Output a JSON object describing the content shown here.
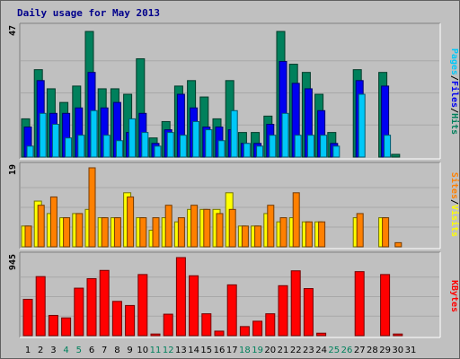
{
  "title": "Daily usage for May 2013",
  "colors": {
    "background": "#c0c0c0",
    "panel": "#c0c0c0",
    "hits": "#00805c",
    "files": "#0000f0",
    "pages": "#00c8f8",
    "visits": "#ffff00",
    "sites": "#ff8000",
    "kbytes": "#ff0000",
    "weekend_label": "#00805c",
    "weekday_label": "#000000"
  },
  "chart_data": [
    {
      "type": "bar",
      "panel": "hits-files-pages",
      "categories": [
        "1",
        "2",
        "3",
        "4",
        "5",
        "6",
        "7",
        "8",
        "9",
        "10",
        "11",
        "12",
        "13",
        "14",
        "15",
        "16",
        "17",
        "18",
        "19",
        "20",
        "21",
        "22",
        "23",
        "24",
        "25",
        "26",
        "27",
        "28",
        "29",
        "30",
        "31"
      ],
      "ylim": [
        0,
        47
      ],
      "ytick_label": "47",
      "legend": [
        "Pages",
        "Files",
        "Hits"
      ],
      "series": [
        {
          "name": "Hits",
          "values": [
            14,
            32,
            25,
            20,
            26,
            46,
            25,
            25,
            23,
            36,
            7,
            13,
            26,
            28,
            22,
            14,
            28,
            9,
            9,
            15,
            46,
            34,
            31,
            23,
            9,
            0,
            32,
            0,
            31,
            1,
            0
          ]
        },
        {
          "name": "Files",
          "values": [
            11,
            28,
            16,
            16,
            18,
            31,
            18,
            20,
            9,
            16,
            5,
            10,
            23,
            18,
            11,
            11,
            10,
            5,
            5,
            12,
            35,
            27,
            25,
            17,
            5,
            0,
            28,
            0,
            26,
            0,
            0
          ]
        },
        {
          "name": "Pages",
          "values": [
            4,
            16,
            12,
            7,
            8,
            17,
            8,
            6,
            14,
            9,
            4,
            9,
            8,
            13,
            10,
            6,
            17,
            5,
            4,
            8,
            16,
            8,
            8,
            8,
            4,
            0,
            23,
            0,
            8,
            0,
            0
          ]
        }
      ]
    },
    {
      "type": "bar",
      "panel": "visits-sites",
      "categories": [
        "1",
        "2",
        "3",
        "4",
        "5",
        "6",
        "7",
        "8",
        "9",
        "10",
        "11",
        "12",
        "13",
        "14",
        "15",
        "16",
        "17",
        "18",
        "19",
        "20",
        "21",
        "22",
        "23",
        "24",
        "25",
        "26",
        "27",
        "28",
        "29",
        "30",
        "31"
      ],
      "ylim": [
        0,
        19
      ],
      "ytick_label": "19",
      "legend": [
        "Sites",
        "Visits"
      ],
      "series": [
        {
          "name": "Visits",
          "values": [
            5,
            11,
            8,
            7,
            8,
            9,
            7,
            7,
            13,
            7,
            4,
            7,
            6,
            9,
            9,
            9,
            13,
            5,
            5,
            8,
            6,
            7,
            6,
            6,
            0,
            0,
            7,
            0,
            7,
            0,
            0
          ]
        },
        {
          "name": "Sites",
          "values": [
            5,
            10,
            12,
            7,
            8,
            19,
            7,
            7,
            12,
            7,
            7,
            10,
            7,
            10,
            9,
            8,
            9,
            5,
            5,
            10,
            7,
            13,
            6,
            6,
            0,
            0,
            8,
            0,
            7,
            1,
            0
          ]
        }
      ]
    },
    {
      "type": "bar",
      "panel": "kbytes",
      "categories": [
        "1",
        "2",
        "3",
        "4",
        "5",
        "6",
        "7",
        "8",
        "9",
        "10",
        "11",
        "12",
        "13",
        "14",
        "15",
        "16",
        "17",
        "18",
        "19",
        "20",
        "21",
        "22",
        "23",
        "24",
        "25",
        "26",
        "27",
        "28",
        "29",
        "30",
        "31"
      ],
      "ylim": [
        0,
        945
      ],
      "ytick_label": "945",
      "legend": [
        "KBytes"
      ],
      "series": [
        {
          "name": "KBytes",
          "values": [
            440,
            715,
            245,
            215,
            575,
            690,
            790,
            415,
            365,
            740,
            20,
            260,
            945,
            725,
            265,
            55,
            615,
            110,
            175,
            265,
            605,
            785,
            570,
            30,
            0,
            0,
            775,
            0,
            740,
            20,
            0
          ]
        }
      ]
    }
  ],
  "x_labels": [
    {
      "label": "1",
      "weekend": false
    },
    {
      "label": "2",
      "weekend": false
    },
    {
      "label": "3",
      "weekend": false
    },
    {
      "label": "4",
      "weekend": true
    },
    {
      "label": "5",
      "weekend": true
    },
    {
      "label": "6",
      "weekend": false
    },
    {
      "label": "7",
      "weekend": false
    },
    {
      "label": "8",
      "weekend": false
    },
    {
      "label": "9",
      "weekend": false
    },
    {
      "label": "10",
      "weekend": false
    },
    {
      "label": "11",
      "weekend": true
    },
    {
      "label": "12",
      "weekend": true
    },
    {
      "label": "13",
      "weekend": false
    },
    {
      "label": "14",
      "weekend": false
    },
    {
      "label": "15",
      "weekend": false
    },
    {
      "label": "16",
      "weekend": false
    },
    {
      "label": "17",
      "weekend": false
    },
    {
      "label": "18",
      "weekend": true
    },
    {
      "label": "19",
      "weekend": true
    },
    {
      "label": "20",
      "weekend": false
    },
    {
      "label": "21",
      "weekend": false
    },
    {
      "label": "22",
      "weekend": false
    },
    {
      "label": "23",
      "weekend": false
    },
    {
      "label": "24",
      "weekend": false
    },
    {
      "label": "25",
      "weekend": true
    },
    {
      "label": "26",
      "weekend": true
    },
    {
      "label": "27",
      "weekend": false
    },
    {
      "label": "28",
      "weekend": false
    },
    {
      "label": "29",
      "weekend": false
    },
    {
      "label": "30",
      "weekend": false
    },
    {
      "label": "31",
      "weekend": false
    }
  ]
}
